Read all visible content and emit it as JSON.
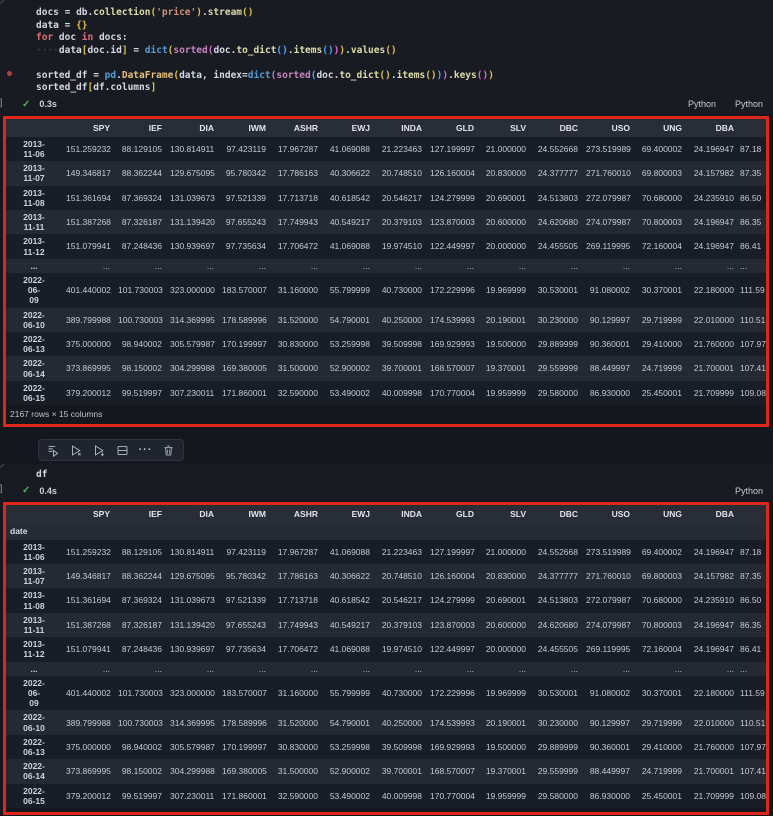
{
  "colors": {
    "annotation_red": "#e0251a",
    "check_green": "#4db35a",
    "gold_bracket": "#e2c04d"
  },
  "cell1": {
    "code_lines": [
      [
        {
          "t": "docs ",
          "c": "v"
        },
        {
          "t": "= ",
          "c": "v"
        },
        {
          "t": "db",
          "c": "v"
        },
        {
          "t": ".",
          "c": "v"
        },
        {
          "t": "collection",
          "c": "f"
        },
        {
          "t": "(",
          "c": "g"
        },
        {
          "t": "'price'",
          "c": "s"
        },
        {
          "t": ")",
          "c": "g"
        },
        {
          "t": ".",
          "c": "v"
        },
        {
          "t": "stream",
          "c": "f"
        },
        {
          "t": "()",
          "c": "g"
        }
      ],
      [
        {
          "t": "data ",
          "c": "v"
        },
        {
          "t": "= ",
          "c": "v"
        },
        {
          "t": "{}",
          "c": "g"
        }
      ],
      [
        {
          "t": "for",
          "c": "k"
        },
        {
          "t": " doc ",
          "c": "v"
        },
        {
          "t": "in",
          "c": "k"
        },
        {
          "t": " docs",
          "c": "v"
        },
        {
          "t": ":",
          "c": "v"
        }
      ],
      [
        {
          "t": "····",
          "c": "w"
        },
        {
          "t": "data",
          "c": "v"
        },
        {
          "t": "[",
          "c": "g"
        },
        {
          "t": "doc",
          "c": "v"
        },
        {
          "t": ".",
          "c": "v"
        },
        {
          "t": "id",
          "c": "v"
        },
        {
          "t": "]",
          "c": "g"
        },
        {
          "t": " = ",
          "c": "v"
        },
        {
          "t": "dict",
          "c": "bb"
        },
        {
          "t": "(",
          "c": "g"
        },
        {
          "t": "sorted",
          "c": "pu"
        },
        {
          "t": "(",
          "c": "b2"
        },
        {
          "t": "doc",
          "c": "v"
        },
        {
          "t": ".",
          "c": "v"
        },
        {
          "t": "to_dict",
          "c": "f"
        },
        {
          "t": "()",
          "c": "b3"
        },
        {
          "t": ".",
          "c": "v"
        },
        {
          "t": "items",
          "c": "f"
        },
        {
          "t": "()",
          "c": "b3"
        },
        {
          "t": ")",
          "c": "b2"
        },
        {
          "t": ")",
          "c": "g"
        },
        {
          "t": ".",
          "c": "v"
        },
        {
          "t": "values",
          "c": "f"
        },
        {
          "t": "()",
          "c": "g"
        }
      ],
      [],
      [
        {
          "t": "sorted_df ",
          "c": "v"
        },
        {
          "t": "= ",
          "c": "v"
        },
        {
          "t": "pd",
          "c": "bb"
        },
        {
          "t": ".",
          "c": "v"
        },
        {
          "t": "DataFrame",
          "c": "cls"
        },
        {
          "t": "(",
          "c": "g"
        },
        {
          "t": "data",
          "c": "v"
        },
        {
          "t": ", ",
          "c": "v"
        },
        {
          "t": "index",
          "c": "v"
        },
        {
          "t": "=",
          "c": "v"
        },
        {
          "t": "dict",
          "c": "bb"
        },
        {
          "t": "(",
          "c": "b2"
        },
        {
          "t": "sorted",
          "c": "pu"
        },
        {
          "t": "(",
          "c": "b3"
        },
        {
          "t": "doc",
          "c": "v"
        },
        {
          "t": ".",
          "c": "v"
        },
        {
          "t": "to_dict",
          "c": "f"
        },
        {
          "t": "()",
          "c": "g"
        },
        {
          "t": ".",
          "c": "v"
        },
        {
          "t": "items",
          "c": "f"
        },
        {
          "t": "()",
          "c": "g"
        },
        {
          "t": ")",
          "c": "b3"
        },
        {
          "t": ")",
          "c": "b2"
        },
        {
          "t": ".",
          "c": "v"
        },
        {
          "t": "keys",
          "c": "f"
        },
        {
          "t": "()",
          "c": "b2"
        },
        {
          "t": ")",
          "c": "g"
        }
      ],
      [
        {
          "t": "sorted_df",
          "c": "v"
        },
        {
          "t": "[",
          "c": "g"
        },
        {
          "t": "df",
          "c": "v"
        },
        {
          "t": ".",
          "c": "v"
        },
        {
          "t": "columns",
          "c": "v"
        },
        {
          "t": "]",
          "c": "g"
        }
      ]
    ],
    "status": {
      "bracket": "]",
      "check": "✓",
      "time": "0.3s",
      "labels": [
        "Python",
        "Python"
      ]
    }
  },
  "toolbar": {
    "icons": [
      "execute-above-cells-icon",
      "execute-cell-icon",
      "execute-cell-and-below-icon",
      "split-cell-icon",
      "more-actions-icon",
      "delete-cell-icon"
    ]
  },
  "cell2": {
    "code_lines": [
      [
        {
          "t": "df",
          "c": "v"
        }
      ]
    ],
    "status": {
      "bracket": "]",
      "check": "✓",
      "time": "0.4s",
      "labels": [
        "Python"
      ]
    }
  },
  "dataframe": {
    "columns": [
      "SPY",
      "IEF",
      "DIA",
      "IWM",
      "ASHR",
      "EWJ",
      "INDA",
      "GLD",
      "SLV",
      "DBC",
      "USO",
      "UNG",
      "DBA",
      ""
    ],
    "index_label": "date",
    "rows": [
      {
        "index": "2013-\n11-06",
        "values": [
          "151.259232",
          "88.129105",
          "130.814911",
          "97.423119",
          "17.967287",
          "41.069088",
          "21.223463",
          "127.199997",
          "21.000000",
          "24.552668",
          "273.519989",
          "69.400002",
          "24.196947",
          "87.18"
        ]
      },
      {
        "index": "2013-\n11-07",
        "values": [
          "149.346817",
          "88.362244",
          "129.675095",
          "95.780342",
          "17.786163",
          "40.306622",
          "20.748510",
          "126.160004",
          "20.830000",
          "24.377777",
          "271.760010",
          "69.800003",
          "24.157982",
          "87.35"
        ]
      },
      {
        "index": "2013-\n11-08",
        "values": [
          "151.361694",
          "87.369324",
          "131.039673",
          "97.521339",
          "17.713718",
          "40.618542",
          "20.546217",
          "124.279999",
          "20.690001",
          "24.513803",
          "272.079987",
          "70.680000",
          "24.235910",
          "86.50"
        ]
      },
      {
        "index": "2013-\n11-11",
        "values": [
          "151.387268",
          "87.326187",
          "131.139420",
          "97.655243",
          "17.749943",
          "40.549217",
          "20.379103",
          "123.870003",
          "20.600000",
          "24.620680",
          "274.079987",
          "70.800003",
          "24.196947",
          "86.35"
        ]
      },
      {
        "index": "2013-\n11-12",
        "values": [
          "151.079941",
          "87.248436",
          "130.939697",
          "97.735634",
          "17.706472",
          "41.069088",
          "19.974510",
          "122.449997",
          "20.000000",
          "24.455505",
          "269.119995",
          "72.160004",
          "24.196947",
          "86.41"
        ]
      },
      {
        "index": "...",
        "values": [
          "...",
          "...",
          "...",
          "...",
          "...",
          "...",
          "...",
          "...",
          "...",
          "...",
          "...",
          "...",
          "...",
          "..."
        ]
      },
      {
        "index": "2022-\n06-\n09",
        "values": [
          "401.440002",
          "101.730003",
          "323.000000",
          "183.570007",
          "31.160000",
          "55.799999",
          "40.730000",
          "172.229996",
          "19.969999",
          "30.530001",
          "91.080002",
          "30.370001",
          "22.180000",
          "111.59"
        ]
      },
      {
        "index": "2022-\n06-10",
        "values": [
          "389.799988",
          "100.730003",
          "314.369995",
          "178.589996",
          "31.520000",
          "54.790001",
          "40.250000",
          "174.539993",
          "20.190001",
          "30.230000",
          "90.129997",
          "29.719999",
          "22.010000",
          "110.51"
        ]
      },
      {
        "index": "2022-\n06-13",
        "values": [
          "375.000000",
          "98.940002",
          "305.579987",
          "170.199997",
          "30.830000",
          "53.259998",
          "39.509998",
          "169.929993",
          "19.500000",
          "29.889999",
          "90.360001",
          "29.410000",
          "21.760000",
          "107.97"
        ]
      },
      {
        "index": "2022-\n06-14",
        "values": [
          "373.869995",
          "98.150002",
          "304.299988",
          "169.380005",
          "31.500000",
          "52.900002",
          "39.700001",
          "168.570007",
          "19.370001",
          "29.559999",
          "88.449997",
          "24.719999",
          "21.700001",
          "107.41"
        ]
      },
      {
        "index": "2022-\n06-15",
        "values": [
          "379.200012",
          "99.519997",
          "307.230011",
          "171.860001",
          "32.590000",
          "53.490002",
          "40.009998",
          "170.770004",
          "19.959999",
          "29.580000",
          "86.930000",
          "25.450001",
          "21.709999",
          "109.08"
        ]
      }
    ],
    "footer": "2167 rows × 15 columns"
  }
}
